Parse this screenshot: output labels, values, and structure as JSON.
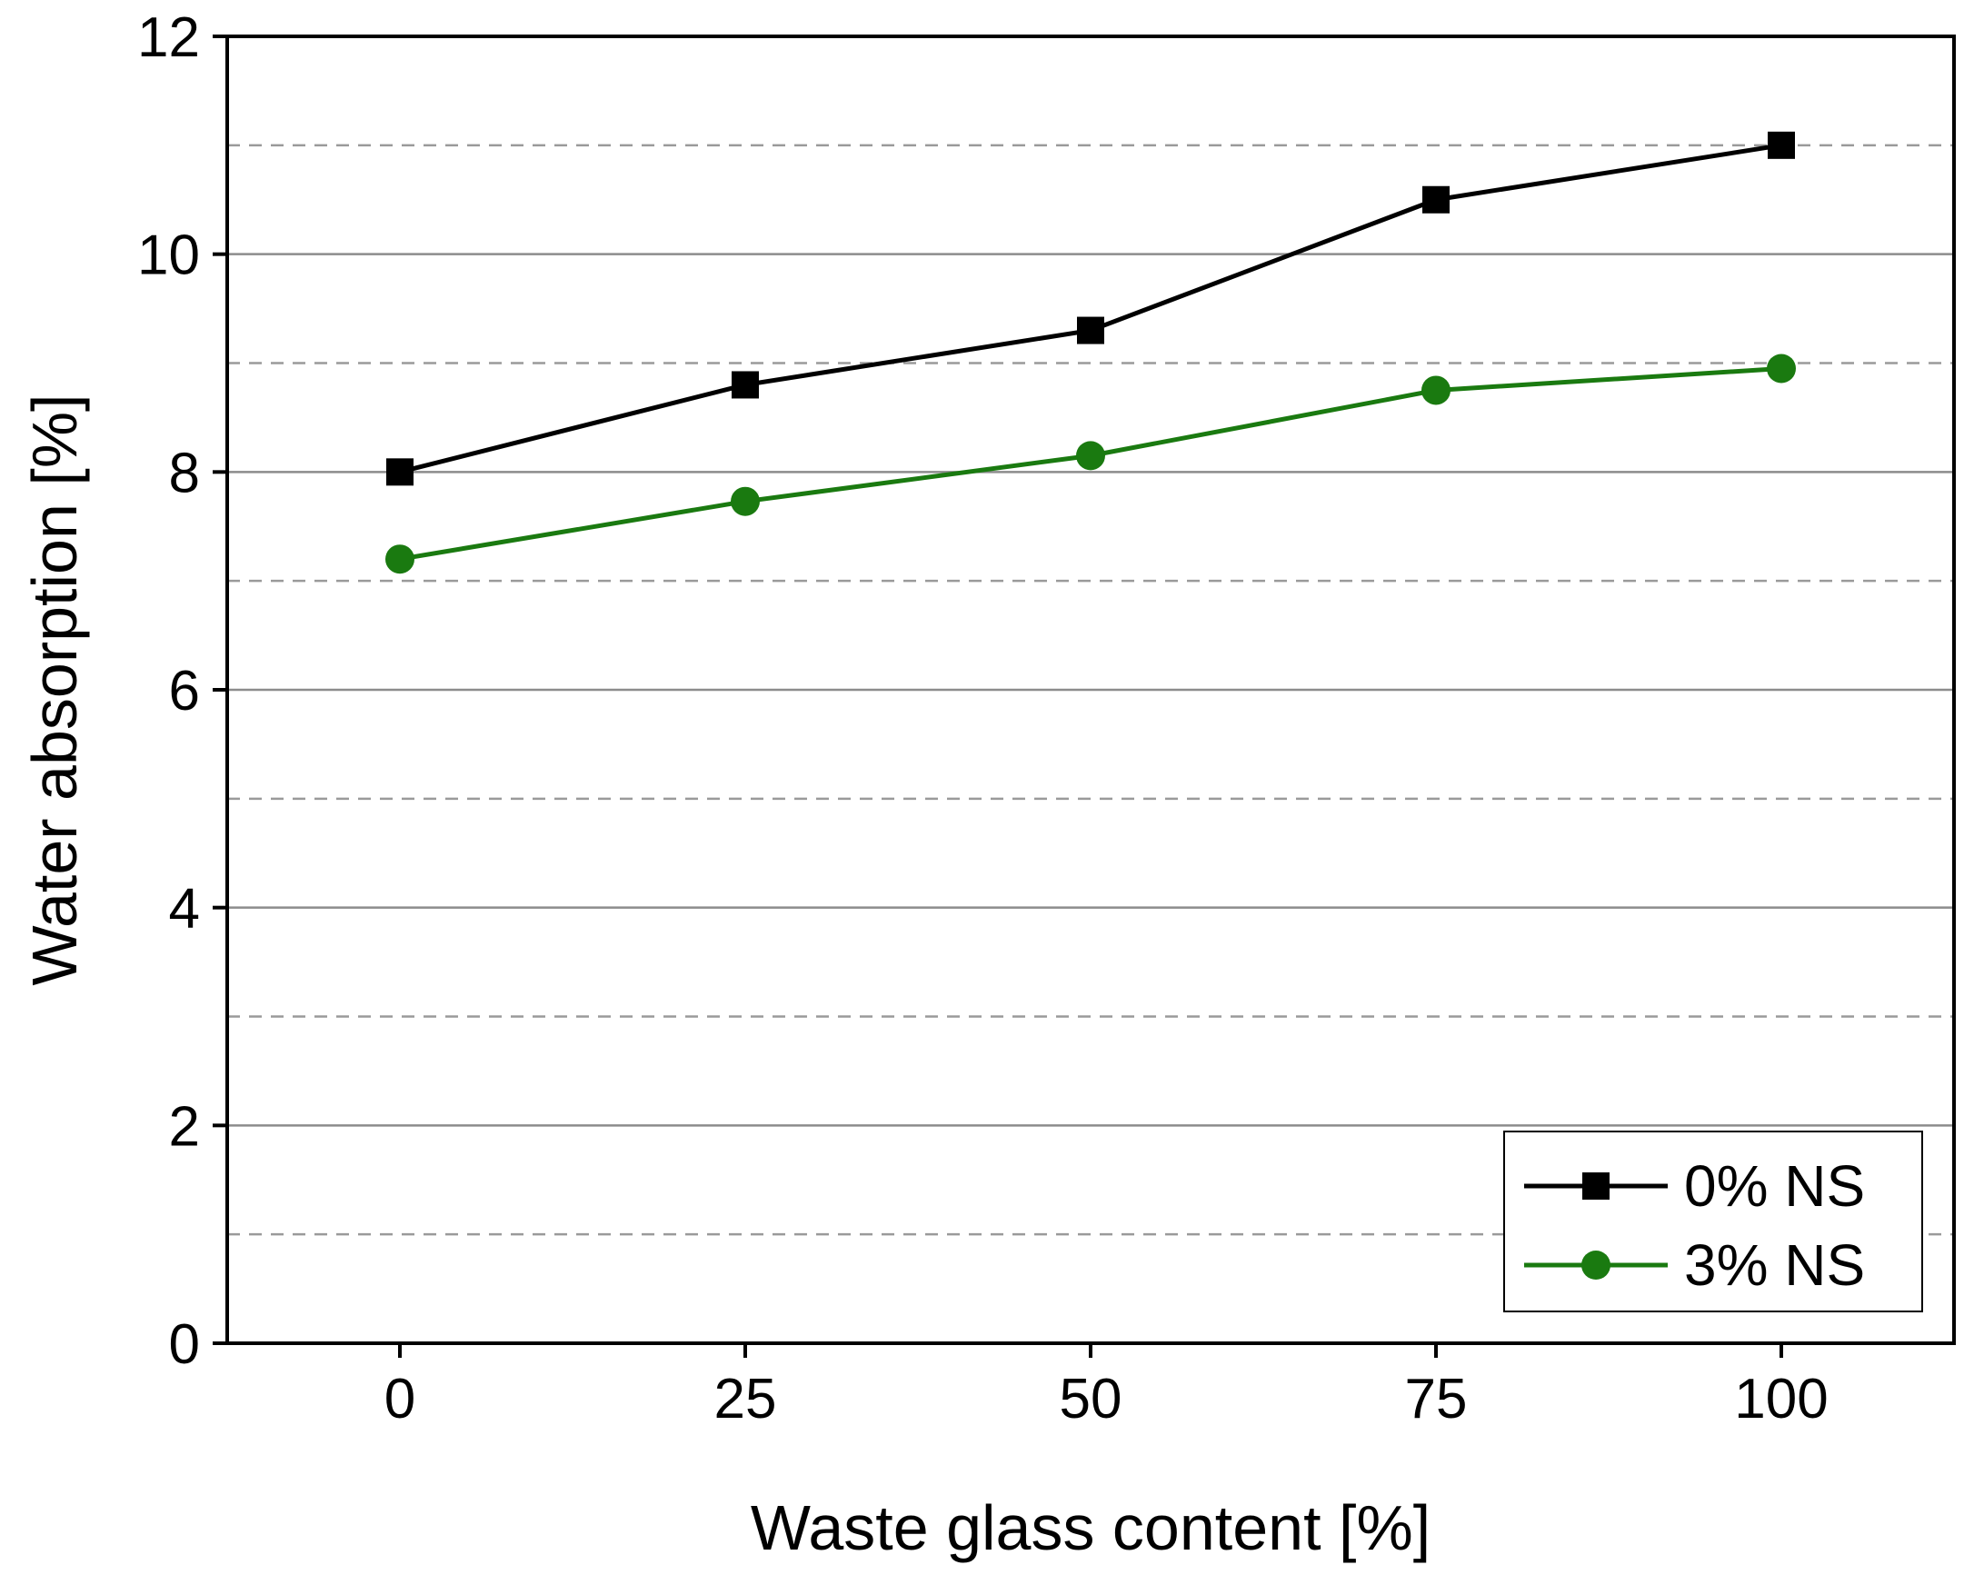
{
  "chart_data": {
    "type": "line",
    "title": "",
    "xlabel": "Waste glass content [%]",
    "ylabel": "Water absorption [%]",
    "x": [
      0,
      25,
      50,
      75,
      100
    ],
    "x_ticks": [
      "0",
      "25",
      "50",
      "75",
      "100"
    ],
    "xlim": [
      -12.5,
      112.5
    ],
    "ylim": [
      0,
      12
    ],
    "y_ticks": [
      "0",
      "2",
      "4",
      "6",
      "8",
      "10",
      "12"
    ],
    "y_major_step": 2,
    "y_minor_step": 1,
    "grid": {
      "major": "solid",
      "minor": "dashed"
    },
    "legend_position": "bottom-right",
    "series": [
      {
        "name": "0% NS",
        "values": [
          8.0,
          8.8,
          9.3,
          10.5,
          11.0
        ],
        "color": "#000000",
        "marker": "square"
      },
      {
        "name": "3% NS",
        "values": [
          7.2,
          7.73,
          8.15,
          8.75,
          8.95
        ],
        "color": "#1a7a10",
        "marker": "circle"
      }
    ]
  }
}
